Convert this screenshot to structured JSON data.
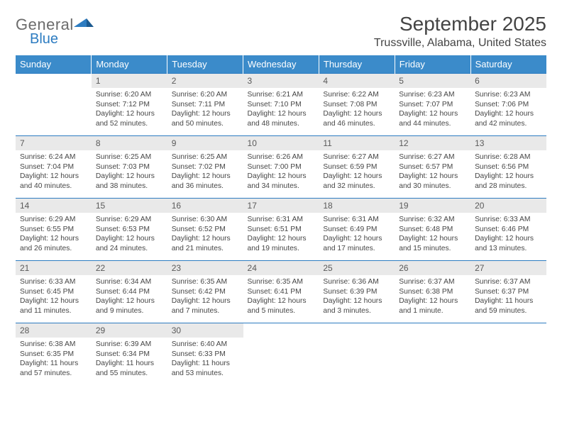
{
  "logo": {
    "word1": "General",
    "word2": "Blue",
    "mark_color": "#2d7cc1"
  },
  "title": "September 2025",
  "location": "Trussville, Alabama, United States",
  "colors": {
    "header_bg": "#3b8bca",
    "header_text": "#ffffff",
    "daynum_bg": "#e9e9e9",
    "daynum_text": "#5a5a5a",
    "border": "#2d7cc1",
    "body_text": "#464646",
    "title_text": "#444444"
  },
  "weekdays": [
    "Sunday",
    "Monday",
    "Tuesday",
    "Wednesday",
    "Thursday",
    "Friday",
    "Saturday"
  ],
  "weeks": [
    [
      null,
      {
        "day": "1",
        "sunrise": "6:20 AM",
        "sunset": "7:12 PM",
        "daylight": "12 hours and 52 minutes."
      },
      {
        "day": "2",
        "sunrise": "6:20 AM",
        "sunset": "7:11 PM",
        "daylight": "12 hours and 50 minutes."
      },
      {
        "day": "3",
        "sunrise": "6:21 AM",
        "sunset": "7:10 PM",
        "daylight": "12 hours and 48 minutes."
      },
      {
        "day": "4",
        "sunrise": "6:22 AM",
        "sunset": "7:08 PM",
        "daylight": "12 hours and 46 minutes."
      },
      {
        "day": "5",
        "sunrise": "6:23 AM",
        "sunset": "7:07 PM",
        "daylight": "12 hours and 44 minutes."
      },
      {
        "day": "6",
        "sunrise": "6:23 AM",
        "sunset": "7:06 PM",
        "daylight": "12 hours and 42 minutes."
      }
    ],
    [
      {
        "day": "7",
        "sunrise": "6:24 AM",
        "sunset": "7:04 PM",
        "daylight": "12 hours and 40 minutes."
      },
      {
        "day": "8",
        "sunrise": "6:25 AM",
        "sunset": "7:03 PM",
        "daylight": "12 hours and 38 minutes."
      },
      {
        "day": "9",
        "sunrise": "6:25 AM",
        "sunset": "7:02 PM",
        "daylight": "12 hours and 36 minutes."
      },
      {
        "day": "10",
        "sunrise": "6:26 AM",
        "sunset": "7:00 PM",
        "daylight": "12 hours and 34 minutes."
      },
      {
        "day": "11",
        "sunrise": "6:27 AM",
        "sunset": "6:59 PM",
        "daylight": "12 hours and 32 minutes."
      },
      {
        "day": "12",
        "sunrise": "6:27 AM",
        "sunset": "6:57 PM",
        "daylight": "12 hours and 30 minutes."
      },
      {
        "day": "13",
        "sunrise": "6:28 AM",
        "sunset": "6:56 PM",
        "daylight": "12 hours and 28 minutes."
      }
    ],
    [
      {
        "day": "14",
        "sunrise": "6:29 AM",
        "sunset": "6:55 PM",
        "daylight": "12 hours and 26 minutes."
      },
      {
        "day": "15",
        "sunrise": "6:29 AM",
        "sunset": "6:53 PM",
        "daylight": "12 hours and 24 minutes."
      },
      {
        "day": "16",
        "sunrise": "6:30 AM",
        "sunset": "6:52 PM",
        "daylight": "12 hours and 21 minutes."
      },
      {
        "day": "17",
        "sunrise": "6:31 AM",
        "sunset": "6:51 PM",
        "daylight": "12 hours and 19 minutes."
      },
      {
        "day": "18",
        "sunrise": "6:31 AM",
        "sunset": "6:49 PM",
        "daylight": "12 hours and 17 minutes."
      },
      {
        "day": "19",
        "sunrise": "6:32 AM",
        "sunset": "6:48 PM",
        "daylight": "12 hours and 15 minutes."
      },
      {
        "day": "20",
        "sunrise": "6:33 AM",
        "sunset": "6:46 PM",
        "daylight": "12 hours and 13 minutes."
      }
    ],
    [
      {
        "day": "21",
        "sunrise": "6:33 AM",
        "sunset": "6:45 PM",
        "daylight": "12 hours and 11 minutes."
      },
      {
        "day": "22",
        "sunrise": "6:34 AM",
        "sunset": "6:44 PM",
        "daylight": "12 hours and 9 minutes."
      },
      {
        "day": "23",
        "sunrise": "6:35 AM",
        "sunset": "6:42 PM",
        "daylight": "12 hours and 7 minutes."
      },
      {
        "day": "24",
        "sunrise": "6:35 AM",
        "sunset": "6:41 PM",
        "daylight": "12 hours and 5 minutes."
      },
      {
        "day": "25",
        "sunrise": "6:36 AM",
        "sunset": "6:39 PM",
        "daylight": "12 hours and 3 minutes."
      },
      {
        "day": "26",
        "sunrise": "6:37 AM",
        "sunset": "6:38 PM",
        "daylight": "12 hours and 1 minute."
      },
      {
        "day": "27",
        "sunrise": "6:37 AM",
        "sunset": "6:37 PM",
        "daylight": "11 hours and 59 minutes."
      }
    ],
    [
      {
        "day": "28",
        "sunrise": "6:38 AM",
        "sunset": "6:35 PM",
        "daylight": "11 hours and 57 minutes."
      },
      {
        "day": "29",
        "sunrise": "6:39 AM",
        "sunset": "6:34 PM",
        "daylight": "11 hours and 55 minutes."
      },
      {
        "day": "30",
        "sunrise": "6:40 AM",
        "sunset": "6:33 PM",
        "daylight": "11 hours and 53 minutes."
      },
      null,
      null,
      null,
      null
    ]
  ],
  "labels": {
    "sunrise": "Sunrise:",
    "sunset": "Sunset:",
    "daylight": "Daylight:"
  }
}
